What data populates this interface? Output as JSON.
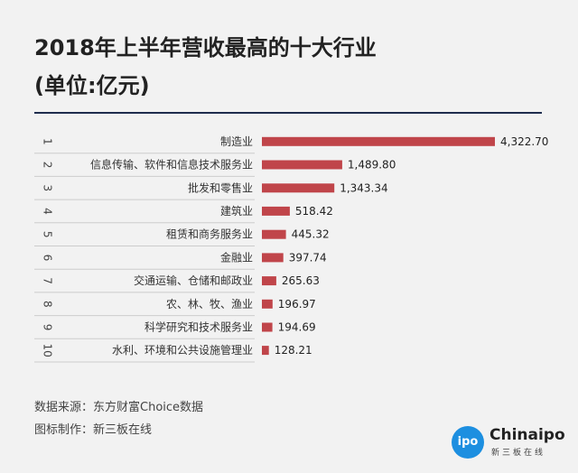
{
  "title": "2018年上半年营收最高的十大行业",
  "subtitle": "(单位:亿元)",
  "footer": {
    "source": "数据来源：东方财富Choice数据",
    "maker": "图标制作：新三板在线"
  },
  "logo": {
    "circle_text": "ipo",
    "name": "Chinaipo",
    "sub": "新三板在线"
  },
  "colors": {
    "bar": "#c0454a",
    "rule": "#1f2d4e",
    "logo": "#1d8fe0"
  },
  "chart_data": {
    "type": "bar",
    "orientation": "horizontal",
    "ranks": [
      "1",
      "2",
      "3",
      "4",
      "5",
      "6",
      "7",
      "8",
      "9",
      "10"
    ],
    "categories": [
      "制造业",
      "信息传输、软件和信息技术服务业",
      "批发和零售业",
      "建筑业",
      "租赁和商务服务业",
      "金融业",
      "交通运输、仓储和邮政业",
      "农、林、牧、渔业",
      "科学研究和技术服务业",
      "水利、环境和公共设施管理业"
    ],
    "values": [
      4322.7,
      1489.8,
      1343.34,
      518.42,
      445.32,
      397.74,
      265.63,
      196.97,
      194.69,
      128.21
    ],
    "value_labels": [
      "4,322.70",
      "1,489.80",
      "1,343.34",
      "518.42",
      "445.32",
      "397.74",
      "265.63",
      "196.97",
      "194.69",
      "128.21"
    ],
    "xlim": [
      0,
      4322.7
    ],
    "grid": false,
    "legend": false
  }
}
